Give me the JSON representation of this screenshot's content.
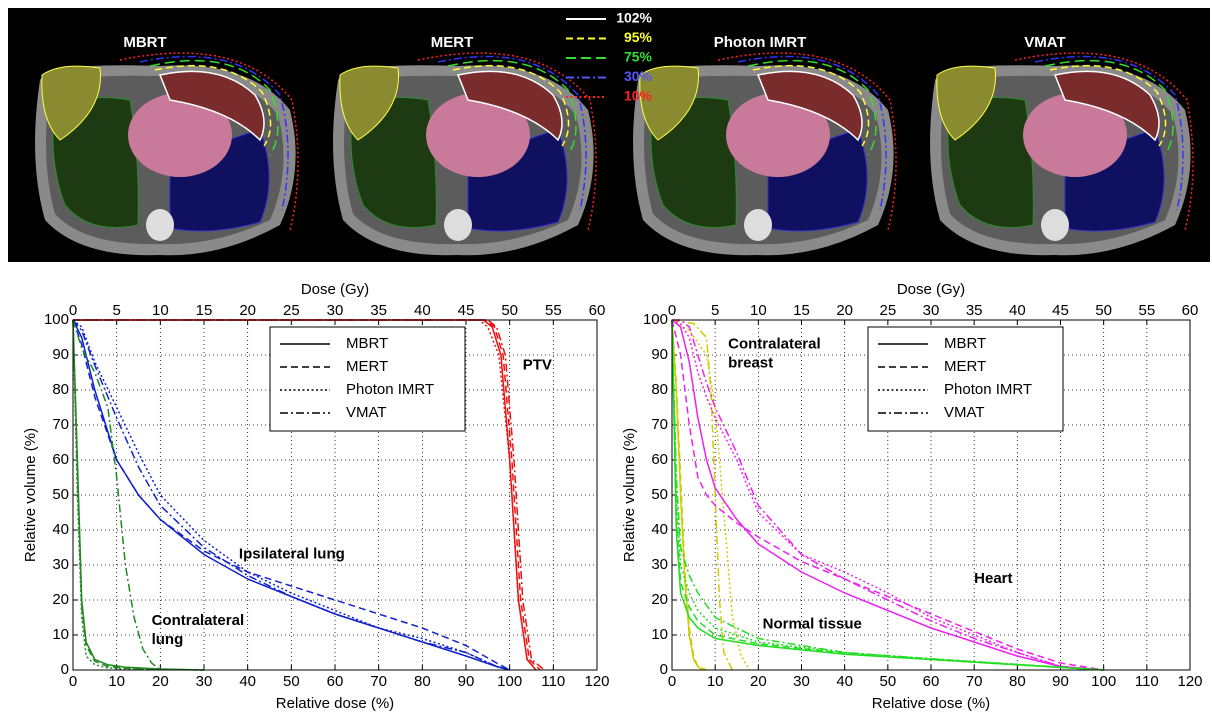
{
  "ct_panels": {
    "titles": [
      "MBRT",
      "MERT",
      "Photon IMRT",
      "VMAT"
    ],
    "isodose_legend": [
      {
        "label": "102%",
        "color": "#ffffff",
        "linestyle": "solid"
      },
      {
        "label": "95%",
        "color": "#ffff33",
        "linestyle": "dashed"
      },
      {
        "label": "75%",
        "color": "#33dd33",
        "linestyle": "longdash"
      },
      {
        "label": "30%",
        "color": "#5555ff",
        "linestyle": "dashdot"
      },
      {
        "label": "10%",
        "color": "#ff2222",
        "linestyle": "dotted"
      }
    ]
  },
  "chart_data": [
    {
      "type": "line",
      "xlabel": "Relative dose (%)",
      "ylabel": "Relative volume (%)",
      "x2label": "Dose (Gy)",
      "xlim": [
        0,
        120
      ],
      "xticks": [
        0,
        10,
        20,
        30,
        40,
        50,
        60,
        70,
        80,
        90,
        100,
        110,
        120
      ],
      "x2lim": [
        0,
        60
      ],
      "x2ticks": [
        0,
        5,
        10,
        15,
        20,
        25,
        30,
        35,
        40,
        45,
        50,
        55,
        60
      ],
      "ylim": [
        0,
        100
      ],
      "yticks": [
        0,
        10,
        20,
        30,
        40,
        50,
        60,
        70,
        80,
        90,
        100
      ],
      "grid": true,
      "legend": [
        {
          "name": "MBRT",
          "linestyle": "solid"
        },
        {
          "name": "MERT",
          "linestyle": "dashed"
        },
        {
          "name": "Photon IMRT",
          "linestyle": "dotted"
        },
        {
          "name": "VMAT",
          "linestyle": "dashdot"
        }
      ],
      "structures": [
        {
          "label": [
            "PTV"
          ],
          "color": "#ee1111",
          "curves": [
            {
              "x": [
                0,
                94,
                96,
                98,
                100,
                102,
                104,
                106
              ],
              "values": [
                100,
                100,
                98,
                90,
                60,
                20,
                3,
                0
              ]
            },
            {
              "x": [
                0,
                94.5,
                96.5,
                98.5,
                100.5,
                102.5,
                104.5,
                107
              ],
              "values": [
                100,
                100,
                98,
                90,
                60,
                20,
                3,
                0
              ]
            },
            {
              "x": [
                0,
                93,
                95,
                97.5,
                100,
                102,
                104,
                106
              ],
              "values": [
                100,
                100,
                98,
                90,
                60,
                20,
                3,
                0
              ]
            },
            {
              "x": [
                0,
                95,
                97,
                99,
                101,
                103,
                105,
                108
              ],
              "values": [
                100,
                100,
                98,
                90,
                60,
                20,
                3,
                0
              ]
            }
          ]
        },
        {
          "label": [
            "Ipsilateral lung"
          ],
          "color": "#1122cc",
          "curves": [
            {
              "x": [
                0,
                2,
                5,
                10,
                15,
                20,
                30,
                40,
                50,
                60,
                70,
                80,
                90,
                97,
                100
              ],
              "values": [
                100,
                95,
                80,
                60,
                50,
                43,
                33,
                26,
                21,
                16,
                12,
                8,
                4,
                1,
                0
              ]
            },
            {
              "x": [
                0,
                2,
                5,
                10,
                15,
                20,
                30,
                40,
                50,
                60,
                70,
                80,
                90,
                97,
                100
              ],
              "values": [
                100,
                93,
                78,
                60,
                50,
                43,
                34,
                28,
                24,
                20,
                16,
                12,
                7,
                2,
                0
              ]
            },
            {
              "x": [
                0,
                2,
                5,
                10,
                15,
                20,
                30,
                40,
                50,
                60,
                70,
                80,
                90,
                97,
                100
              ],
              "values": [
                100,
                98,
                88,
                75,
                62,
                50,
                37,
                28,
                22,
                17,
                12,
                9,
                5,
                1,
                0
              ]
            },
            {
              "x": [
                0,
                2,
                5,
                10,
                15,
                20,
                30,
                40,
                50,
                60,
                70,
                80,
                90,
                97,
                100
              ],
              "values": [
                100,
                97,
                87,
                72,
                58,
                47,
                35,
                27,
                21,
                16,
                12,
                8,
                5,
                1,
                0
              ]
            }
          ]
        },
        {
          "label": [
            "Contralateral",
            "lung"
          ],
          "color": "#228822",
          "curves": [
            {
              "x": [
                0,
                1,
                2,
                3,
                5,
                8,
                12,
                20,
                30
              ],
              "values": [
                100,
                60,
                20,
                8,
                3,
                1.5,
                0.8,
                0.3,
                0
              ]
            },
            {
              "x": [
                0,
                1,
                2,
                3,
                5,
                8,
                12,
                20,
                30
              ],
              "values": [
                100,
                55,
                18,
                7,
                2.5,
                1,
                0.5,
                0.2,
                0
              ]
            },
            {
              "x": [
                0,
                1,
                2,
                3,
                5,
                8,
                12,
                20,
                30
              ],
              "values": [
                100,
                50,
                15,
                4,
                1.5,
                0.6,
                0.3,
                0.1,
                0
              ]
            },
            {
              "x": [
                0,
                2,
                5,
                8,
                10,
                12,
                14,
                16,
                18,
                20
              ],
              "values": [
                100,
                92,
                85,
                75,
                55,
                30,
                15,
                6,
                2,
                0
              ]
            }
          ]
        }
      ]
    },
    {
      "type": "line",
      "xlabel": "Relative dose (%)",
      "ylabel": "Relative volume (%)",
      "x2label": "Dose (Gy)",
      "xlim": [
        0,
        120
      ],
      "xticks": [
        0,
        10,
        20,
        30,
        40,
        50,
        60,
        70,
        80,
        90,
        100,
        110,
        120
      ],
      "x2lim": [
        0,
        60
      ],
      "x2ticks": [
        0,
        5,
        10,
        15,
        20,
        25,
        30,
        35,
        40,
        45,
        50,
        55,
        60
      ],
      "ylim": [
        0,
        100
      ],
      "yticks": [
        0,
        10,
        20,
        30,
        40,
        50,
        60,
        70,
        80,
        90,
        100
      ],
      "grid": true,
      "legend": [
        {
          "name": "MBRT",
          "linestyle": "solid"
        },
        {
          "name": "MERT",
          "linestyle": "dashed"
        },
        {
          "name": "Photon IMRT",
          "linestyle": "dotted"
        },
        {
          "name": "VMAT",
          "linestyle": "dashdot"
        }
      ],
      "structures": [
        {
          "label": [
            "Contralateral",
            "breast"
          ],
          "color": "#cccc00",
          "curves": [
            {
              "x": [
                0,
                1,
                2,
                3,
                4,
                5,
                6,
                7
              ],
              "values": [
                100,
                80,
                50,
                25,
                10,
                3,
                1,
                0
              ]
            },
            {
              "x": [
                0,
                1,
                2,
                3,
                4,
                5,
                6,
                8
              ],
              "values": [
                100,
                82,
                55,
                28,
                12,
                4,
                1,
                0
              ]
            },
            {
              "x": [
                0,
                4,
                8,
                10,
                12,
                14,
                16,
                18
              ],
              "values": [
                100,
                97,
                90,
                75,
                45,
                15,
                4,
                0
              ]
            },
            {
              "x": [
                0,
                5,
                8,
                9,
                10,
                11,
                12,
                14
              ],
              "values": [
                100,
                99,
                95,
                80,
                50,
                20,
                5,
                0
              ]
            }
          ]
        },
        {
          "label": [
            "Heart"
          ],
          "color": "#ee22ee",
          "curves": [
            {
              "x": [
                0,
                2,
                4,
                6,
                8,
                10,
                15,
                20,
                30,
                40,
                50,
                60,
                70,
                80,
                90,
                100
              ],
              "values": [
                100,
                98,
                88,
                72,
                60,
                52,
                43,
                36,
                28,
                22,
                17,
                12,
                8,
                4,
                1,
                0
              ]
            },
            {
              "x": [
                0,
                2,
                4,
                6,
                8,
                10,
                15,
                20,
                30,
                40,
                50,
                60,
                70,
                80,
                90,
                100
              ],
              "values": [
                100,
                90,
                70,
                55,
                50,
                47,
                42,
                38,
                31,
                26,
                21,
                16,
                11,
                6,
                2,
                0
              ]
            },
            {
              "x": [
                0,
                2,
                4,
                6,
                8,
                10,
                15,
                20,
                30,
                40,
                50,
                60,
                70,
                80,
                90,
                100
              ],
              "values": [
                100,
                99,
                95,
                85,
                78,
                72,
                60,
                45,
                33,
                28,
                22,
                15,
                10,
                5,
                1,
                0
              ]
            },
            {
              "x": [
                0,
                2,
                4,
                6,
                8,
                10,
                15,
                20,
                30,
                40,
                50,
                60,
                70,
                80,
                90,
                100
              ],
              "values": [
                100,
                100,
                98,
                90,
                82,
                75,
                62,
                47,
                33,
                26,
                20,
                14,
                9,
                5,
                1,
                0
              ]
            }
          ]
        },
        {
          "label": [
            "Normal tissue"
          ],
          "color": "#22dd22",
          "curves": [
            {
              "x": [
                0,
                1,
                2,
                4,
                6,
                10,
                20,
                40,
                60,
                80,
                100
              ],
              "values": [
                100,
                40,
                22,
                15,
                12,
                9,
                7,
                4.5,
                3,
                1.5,
                0
              ]
            },
            {
              "x": [
                0,
                1,
                2,
                4,
                6,
                10,
                20,
                40,
                60,
                80,
                100
              ],
              "values": [
                100,
                45,
                25,
                18,
                14,
                10,
                7.5,
                4.8,
                3,
                1.5,
                0
              ]
            },
            {
              "x": [
                0,
                1,
                2,
                4,
                6,
                10,
                20,
                40,
                60,
                80,
                100
              ],
              "values": [
                100,
                50,
                30,
                22,
                17,
                12,
                8,
                5,
                3.2,
                1.6,
                0
              ]
            },
            {
              "x": [
                0,
                1,
                2,
                4,
                6,
                10,
                20,
                40,
                60,
                80,
                100
              ],
              "values": [
                100,
                55,
                35,
                27,
                22,
                15,
                9,
                5,
                3.2,
                1.6,
                0
              ]
            }
          ]
        }
      ]
    }
  ]
}
